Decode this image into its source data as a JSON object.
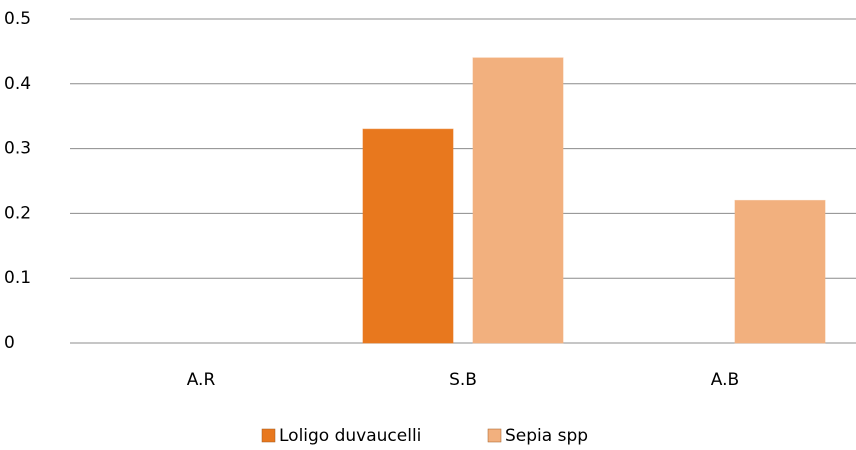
{
  "chart_data": {
    "type": "bar",
    "categories": [
      "A.R",
      "S.B",
      "A.B"
    ],
    "series": [
      {
        "name": "Loligo duvaucelli",
        "color": "#e8781e",
        "values": [
          0,
          0.33,
          0
        ]
      },
      {
        "name": "Sepia spp",
        "color": "#f2b07e",
        "values": [
          0,
          0.44,
          0.22
        ]
      }
    ],
    "ylim": [
      0,
      0.5
    ],
    "yticks": [
      0,
      0.1,
      0.2,
      0.3,
      0.4,
      0.5
    ],
    "grid": true,
    "legend": "bottom"
  }
}
